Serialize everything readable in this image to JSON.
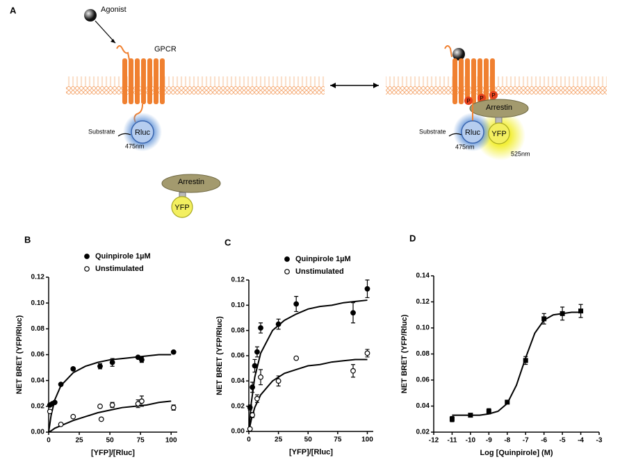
{
  "diagram": {
    "panel": "A",
    "agonist": "Agonist",
    "receptor": "GPCR",
    "left": {
      "substrate": "Substrate",
      "donor": "Rluc",
      "donor_wavelength": "475nm",
      "arrestin": "Arrestin",
      "acceptor": "YFP"
    },
    "right": {
      "substrate": "Substrate",
      "donor": "Rluc",
      "donor_wavelength": "475nm",
      "arrestin": "Arrestin",
      "acceptor": "YFP",
      "acceptor_wavelength": "525nm",
      "phospho": [
        "P",
        "P",
        "P"
      ]
    }
  },
  "chart_data": [
    {
      "type": "scatter",
      "panel": "B",
      "ylabel": "NET BRET (YFP/Rluc)",
      "xlabel": "[YFP]/[Rluc]",
      "xlim": [
        0,
        105
      ],
      "xticks": [
        0,
        25,
        50,
        75,
        100
      ],
      "ylim": [
        0,
        0.12
      ],
      "yticks": [
        {
          "value": 0,
          "label": "0.00"
        },
        0.02,
        0.04,
        0.06,
        0.08,
        {
          "value": 0.1,
          "label": "0.10"
        },
        0.12
      ],
      "legend": "top",
      "series": [
        {
          "name": "Quinpirole 1µM",
          "color": "#000000",
          "marker": "filled",
          "x": [
            1,
            3,
            5,
            10,
            20,
            42,
            52,
            73,
            76,
            102
          ],
          "values": [
            0.021,
            0.022,
            0.023,
            0.037,
            0.049,
            0.051,
            0.054,
            0.058,
            0.056,
            0.062
          ],
          "errors": [
            null,
            null,
            null,
            null,
            null,
            0.002,
            0.003,
            null,
            0.002,
            null
          ],
          "curve": {
            "x": [
              0,
              2,
              5,
              10,
              20,
              30,
              40,
              50,
              60,
              70,
              80,
              90,
              100
            ],
            "values": [
              0,
              0.013,
              0.025,
              0.036,
              0.046,
              0.051,
              0.054,
              0.056,
              0.057,
              0.058,
              0.059,
              0.06,
              0.06
            ]
          }
        },
        {
          "name": "Unstimulated",
          "color": "#000000",
          "marker": "open",
          "x": [
            1,
            10,
            20,
            42,
            43,
            52,
            73,
            76,
            102
          ],
          "values": [
            0.016,
            0.006,
            0.012,
            0.02,
            0.01,
            0.021,
            0.022,
            0.024,
            0.019
          ],
          "errors": [
            null,
            null,
            null,
            null,
            null,
            0.002,
            0.003,
            0.004,
            0.002
          ],
          "curve": {
            "x": [
              0,
              2,
              5,
              10,
              20,
              30,
              40,
              50,
              60,
              70,
              80,
              90,
              100
            ],
            "values": [
              0,
              0.001,
              0.003,
              0.005,
              0.009,
              0.012,
              0.015,
              0.017,
              0.019,
              0.02,
              0.021,
              0.023,
              0.024
            ]
          }
        }
      ]
    },
    {
      "type": "scatter",
      "panel": "C",
      "ylabel": "NET BRET (YFP/Rluc)",
      "xlabel": "[YFP]/[Rluc]",
      "xlim": [
        0,
        105
      ],
      "xticks": [
        0,
        25,
        50,
        75,
        100
      ],
      "ylim": [
        0,
        0.12
      ],
      "yticks": [
        {
          "value": 0,
          "label": "0.00"
        },
        0.02,
        0.04,
        0.06,
        0.08,
        {
          "value": 0.1,
          "label": "0.10"
        },
        0.12
      ],
      "legend": "top",
      "series": [
        {
          "name": "Quinpirole 1µM",
          "color": "#000000",
          "marker": "filled",
          "x": [
            1,
            3,
            5,
            7,
            10,
            25,
            40,
            88,
            100
          ],
          "values": [
            0.019,
            0.035,
            0.052,
            0.063,
            0.082,
            0.085,
            0.101,
            0.094,
            0.113
          ],
          "errors": [
            0.002,
            0.004,
            0.005,
            0.004,
            0.004,
            0.004,
            0.006,
            0.008,
            0.007
          ],
          "curve": {
            "x": [
              0,
              2,
              5,
              10,
              20,
              30,
              40,
              50,
              60,
              70,
              80,
              90,
              100
            ],
            "values": [
              0,
              0.022,
              0.043,
              0.062,
              0.08,
              0.088,
              0.093,
              0.097,
              0.099,
              0.1,
              0.102,
              0.103,
              0.104
            ]
          }
        },
        {
          "name": "Unstimulated",
          "color": "#000000",
          "marker": "open",
          "x": [
            1,
            3,
            7,
            10,
            25,
            40,
            88,
            100
          ],
          "values": [
            0.002,
            0.013,
            0.026,
            0.043,
            0.04,
            0.058,
            0.048,
            0.062
          ],
          "errors": [
            0.001,
            0.002,
            0.003,
            0.006,
            0.004,
            null,
            0.005,
            0.003
          ],
          "curve": {
            "x": [
              0,
              2,
              5,
              10,
              20,
              30,
              40,
              50,
              60,
              70,
              80,
              90,
              100
            ],
            "values": [
              0,
              0.009,
              0.019,
              0.029,
              0.04,
              0.046,
              0.049,
              0.052,
              0.053,
              0.055,
              0.056,
              0.057,
              0.057
            ]
          }
        }
      ]
    },
    {
      "type": "scatter",
      "panel": "D",
      "ylabel": "NET BRET (YFP/Rluc)",
      "xlabel": "Log [Quinpirole] (M)",
      "xlim": [
        -12,
        -3
      ],
      "xticks": [
        -12,
        -11,
        -10,
        -9,
        -8,
        -7,
        -6,
        -5,
        -4,
        -3
      ],
      "ylim": [
        0.02,
        0.14
      ],
      "yticks": [
        0.02,
        0.04,
        0.06,
        0.08,
        {
          "value": 0.1,
          "label": "0.10"
        },
        0.12,
        0.14
      ],
      "series": [
        {
          "color": "#000000",
          "marker": "square",
          "x": [
            -11,
            -10,
            -9,
            -8,
            -7,
            -6,
            -5,
            -4
          ],
          "values": [
            0.03,
            0.033,
            0.036,
            0.043,
            0.075,
            0.107,
            0.111,
            0.113
          ],
          "errors": [
            0.002,
            0.001,
            0.002,
            0.001,
            0.003,
            0.004,
            0.005,
            0.005
          ],
          "curve": {
            "x": [
              -11,
              -10.5,
              -10,
              -9.5,
              -9,
              -8.5,
              -8,
              -7.5,
              -7,
              -6.5,
              -6,
              -5.5,
              -5,
              -4.5,
              -4
            ],
            "values": [
              0.033,
              0.033,
              0.033,
              0.033,
              0.034,
              0.036,
              0.042,
              0.056,
              0.077,
              0.096,
              0.106,
              0.11,
              0.111,
              0.112,
              0.112
            ]
          }
        }
      ]
    }
  ]
}
